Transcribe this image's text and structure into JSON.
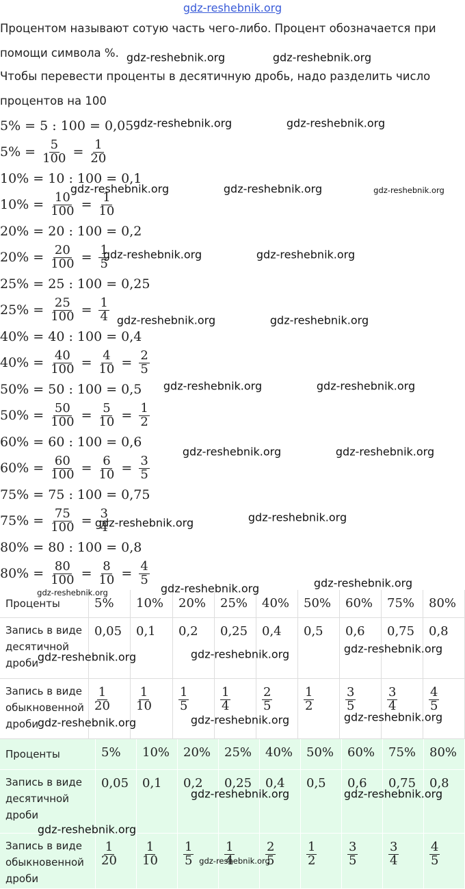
{
  "site_link": "gdz-reshebnik.org",
  "watermark": "gdz-reshebnik.org",
  "intro": [
    "Процентом называют сотую часть чего-либо. Процент обозначается при",
    "помощи символа %.",
    "Чтобы перевести проценты в десятичную дробь, надо разделить число",
    "процентов на 100"
  ],
  "sep": "=",
  "examples": [
    {
      "division": "5% = 5 : 100 = 0,05",
      "lead": "5% =",
      "fractions": [
        {
          "num": "5",
          "den": "100"
        },
        {
          "num": "1",
          "den": "20"
        }
      ]
    },
    {
      "division": "10% = 10 : 100 = 0,1",
      "lead": "10% =",
      "fractions": [
        {
          "num": "10",
          "den": "100"
        },
        {
          "num": "1",
          "den": "10"
        }
      ]
    },
    {
      "division": "20% = 20 : 100 = 0,2",
      "lead": "20% =",
      "fractions": [
        {
          "num": "20",
          "den": "100"
        },
        {
          "num": "1",
          "den": "5"
        }
      ]
    },
    {
      "division": "25% = 25 : 100 = 0,25",
      "lead": "25% =",
      "fractions": [
        {
          "num": "25",
          "den": "100"
        },
        {
          "num": "1",
          "den": "4"
        }
      ]
    },
    {
      "division": "40% = 40 : 100 = 0,4",
      "lead": "40% =",
      "fractions": [
        {
          "num": "40",
          "den": "100"
        },
        {
          "num": "4",
          "den": "10"
        },
        {
          "num": "2",
          "den": "5"
        }
      ]
    },
    {
      "division": "50% = 50 : 100 = 0,5",
      "lead": "50% =",
      "fractions": [
        {
          "num": "50",
          "den": "100"
        },
        {
          "num": "5",
          "den": "10"
        },
        {
          "num": "1",
          "den": "2"
        }
      ]
    },
    {
      "division": "60% = 60 : 100 = 0,6",
      "lead": "60% =",
      "fractions": [
        {
          "num": "60",
          "den": "100"
        },
        {
          "num": "6",
          "den": "10"
        },
        {
          "num": "3",
          "den": "5"
        }
      ]
    },
    {
      "division": "75% = 75 : 100 = 0,75",
      "lead": "75% =",
      "fractions": [
        {
          "num": "75",
          "den": "100"
        },
        {
          "num": "3",
          "den": "4"
        }
      ]
    },
    {
      "division": "80% = 80 : 100 = 0,8",
      "lead": "80% =",
      "fractions": [
        {
          "num": "80",
          "den": "100"
        },
        {
          "num": "8",
          "den": "10"
        },
        {
          "num": "4",
          "den": "5"
        }
      ]
    }
  ],
  "tables": [
    {
      "rows": [
        {
          "label": "Проценты",
          "cells": [
            "5%",
            "10%",
            "20%",
            "25%",
            "40%",
            "50%",
            "60%",
            "75%",
            "80%"
          ]
        },
        {
          "label": "Запись в виде десятичной дроби",
          "cells": [
            "0,05",
            "0,1",
            "0,2",
            "0,25",
            "0,4",
            "0,5",
            "0,6",
            "0,75",
            "0,8"
          ]
        },
        {
          "label": "Запись в виде обыкновенной дроби",
          "cells": [
            {
              "num": "1",
              "den": "20"
            },
            {
              "num": "1",
              "den": "10"
            },
            {
              "num": "1",
              "den": "5"
            },
            {
              "num": "1",
              "den": "4"
            },
            {
              "num": "2",
              "den": "5"
            },
            {
              "num": "1",
              "den": "2"
            },
            {
              "num": "3",
              "den": "5"
            },
            {
              "num": "3",
              "den": "4"
            },
            {
              "num": "4",
              "den": "5"
            }
          ]
        }
      ]
    },
    {
      "rows": [
        {
          "label": "Проценты",
          "cells": [
            "5%",
            "10%",
            "20%",
            "25%",
            "40%",
            "50%",
            "60%",
            "75%",
            "80%"
          ]
        },
        {
          "label": "Запись в виде десятичной дроби",
          "cells": [
            "0,05",
            "0,1",
            "0,2",
            "0,25",
            "0,4",
            "0,5",
            "0,6",
            "0,75",
            "0,8"
          ]
        },
        {
          "label": "Запись в виде обыкновенной дроби",
          "cells": [
            {
              "num": "1",
              "den": "20"
            },
            {
              "num": "1",
              "den": "10"
            },
            {
              "num": "1",
              "den": "5"
            },
            {
              "num": "1",
              "den": "4"
            },
            {
              "num": "2",
              "den": "5"
            },
            {
              "num": "1",
              "den": "2"
            },
            {
              "num": "3",
              "den": "5"
            },
            {
              "num": "3",
              "den": "4"
            },
            {
              "num": "4",
              "den": "5"
            }
          ]
        }
      ]
    }
  ]
}
